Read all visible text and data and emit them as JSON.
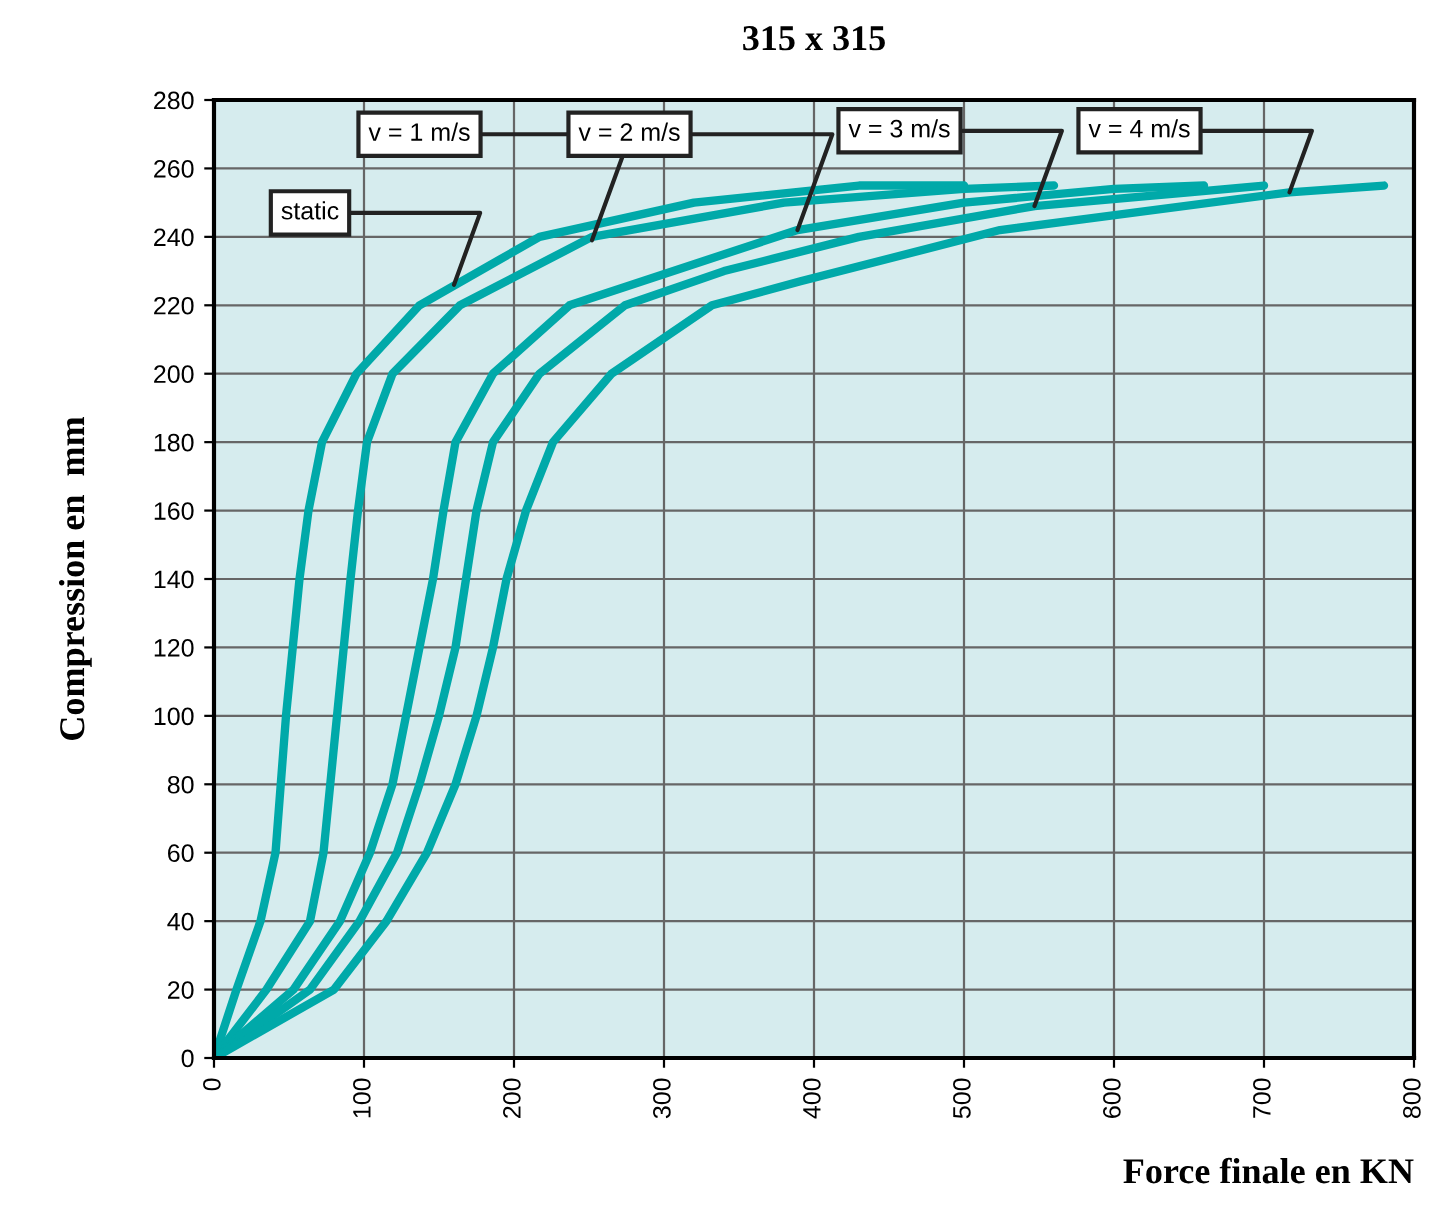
{
  "chart_data": {
    "type": "line",
    "title": "315 x 315",
    "xlabel": "Force finale en KN",
    "ylabel": "Compression en  mm",
    "xlim": [
      0,
      800
    ],
    "xticks": [
      0,
      100,
      200,
      300,
      400,
      500,
      600,
      700,
      800
    ],
    "ylim": [
      0,
      280
    ],
    "yticks": [
      0,
      20,
      40,
      60,
      80,
      100,
      120,
      140,
      160,
      180,
      200,
      220,
      240,
      260,
      280
    ],
    "grid": true,
    "legend": false,
    "marker": "none",
    "line_style": "solid",
    "series": [
      {
        "color": "#00a9a9",
        "x": [
          0,
          15,
          31,
          41,
          48,
          57,
          63,
          72,
          95,
          137,
          217,
          320,
          430,
          500
        ],
        "values": [
          0,
          20,
          40,
          60,
          100,
          140,
          160,
          180,
          200,
          220,
          240,
          250,
          255,
          255
        ]
      },
      {
        "color": "#00a9a9",
        "x": [
          0,
          35,
          64,
          73,
          82,
          91,
          96,
          102,
          119,
          164,
          252,
          380,
          500,
          560
        ],
        "values": [
          0,
          20,
          40,
          60,
          100,
          140,
          160,
          180,
          200,
          220,
          240,
          250,
          254,
          255
        ]
      },
      {
        "color": "#00a9a9",
        "x": [
          0,
          53,
          84,
          104,
          119,
          128,
          137,
          146,
          153,
          161,
          186,
          237,
          389,
          500,
          600,
          660
        ],
        "values": [
          0,
          20,
          40,
          60,
          80,
          100,
          120,
          140,
          160,
          180,
          200,
          220,
          242,
          250,
          254,
          255
        ]
      },
      {
        "color": "#00a9a9",
        "x": [
          0,
          64,
          97,
          122,
          137,
          150,
          161,
          168,
          175,
          186,
          217,
          274,
          340,
          430,
          547,
          650,
          700
        ],
        "values": [
          0,
          20,
          40,
          60,
          80,
          100,
          120,
          140,
          160,
          180,
          200,
          220,
          230,
          240,
          249,
          253,
          255
        ]
      },
      {
        "color": "#00a9a9",
        "x": [
          0,
          80,
          115,
          142,
          161,
          175,
          186,
          195,
          208,
          226,
          265,
          332,
          391,
          524,
          717,
          780
        ],
        "values": [
          0,
          20,
          40,
          60,
          80,
          100,
          120,
          140,
          160,
          180,
          200,
          220,
          227,
          242,
          253,
          255
        ]
      }
    ],
    "annotations": [
      {
        "text": "static",
        "x": 160,
        "y": 226
      },
      {
        "text": "v = 1 m/s",
        "x": 252,
        "y": 239
      },
      {
        "text": "v = 2 m/s",
        "x": 389,
        "y": 242
      },
      {
        "text": "v = 3 m/s",
        "x": 547,
        "y": 249
      },
      {
        "text": "v = 4 m/s",
        "x": 717,
        "y": 253
      }
    ]
  }
}
